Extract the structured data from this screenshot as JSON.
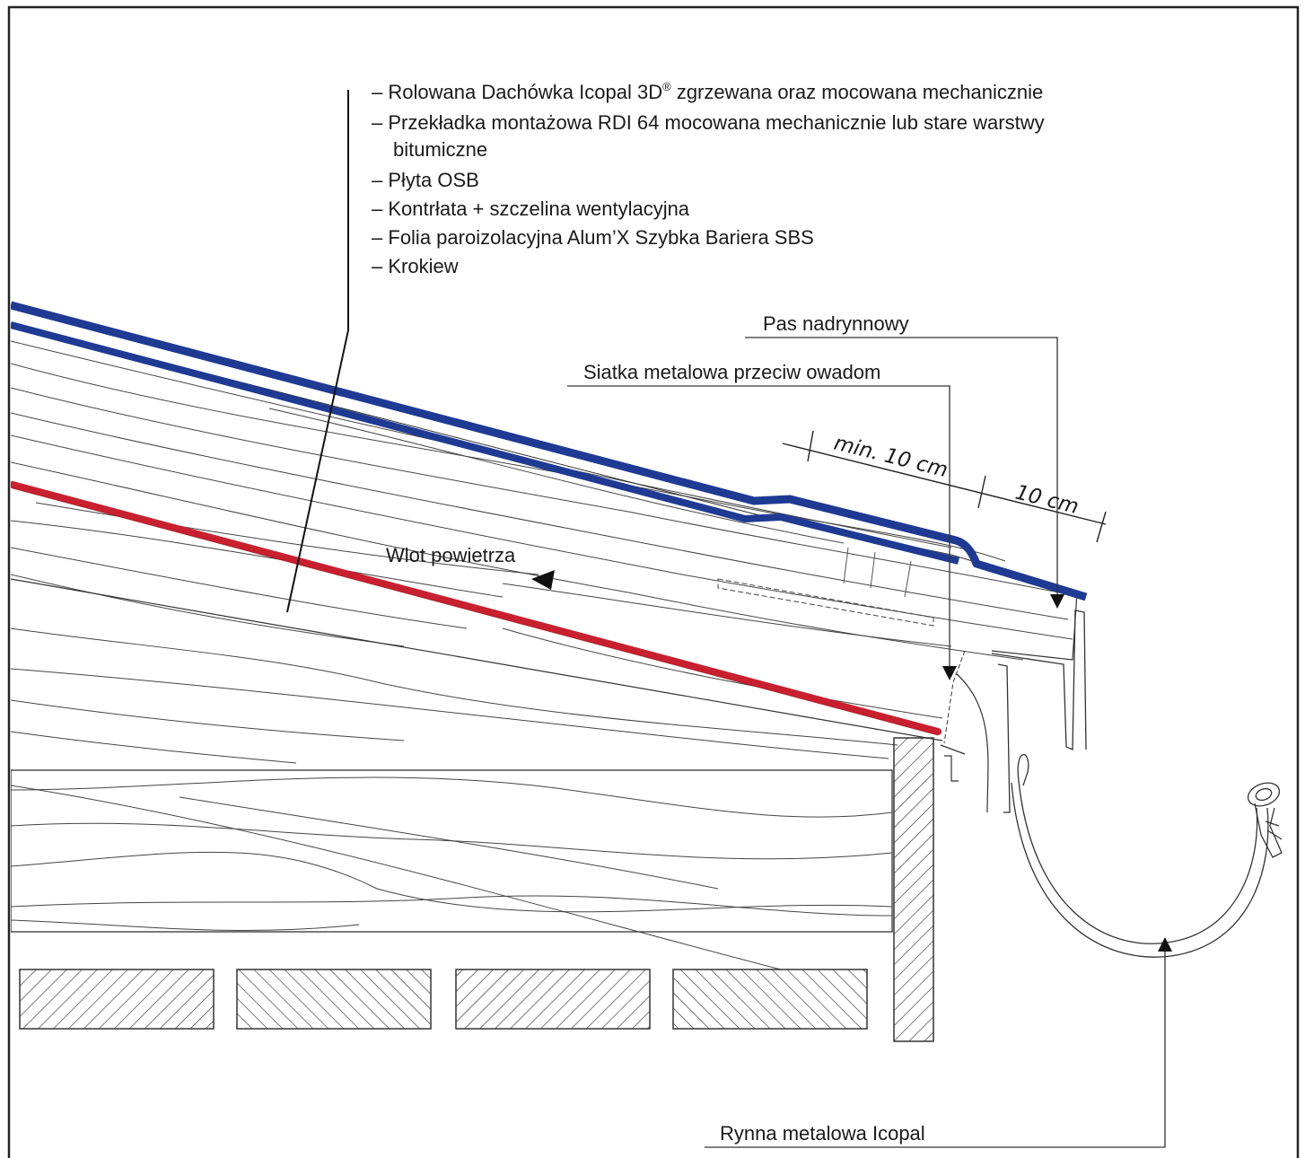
{
  "layers": [
    {
      "dash": "–",
      "text": "Rolowana Dachówka Icopal 3D",
      "sup": "®",
      "after": " zgrzewana oraz mocowana mechanicznie"
    },
    {
      "dash": "–",
      "text": "Przekładka montażowa RDI 64 mocowana mechanicznie lub stare warstwy"
    },
    {
      "dash": "",
      "text": "bitumiczne"
    },
    {
      "dash": "–",
      "text": "Płyta OSB"
    },
    {
      "dash": "–",
      "text": "Kontrłata + szczelina wentylacyjna"
    },
    {
      "dash": "–",
      "text": "Folia paroizolacyjna Alum’X Szybka Bariera SBS"
    },
    {
      "dash": "–",
      "text": "Krokiew"
    }
  ],
  "labels": {
    "drip_edge": "Pas nadrynnowy",
    "insect_mesh": "Siatka metalowa przeciw owadom",
    "air_inlet": "Wlot powietrza",
    "gutter": "Rynna metalowa Icopal"
  },
  "dimensions": {
    "overlap": "min. 10 cm",
    "edge": "10 cm"
  },
  "colors": {
    "membrane": "#1f3a93",
    "vapour_barrier": "#c8202f",
    "line": "#333333"
  }
}
